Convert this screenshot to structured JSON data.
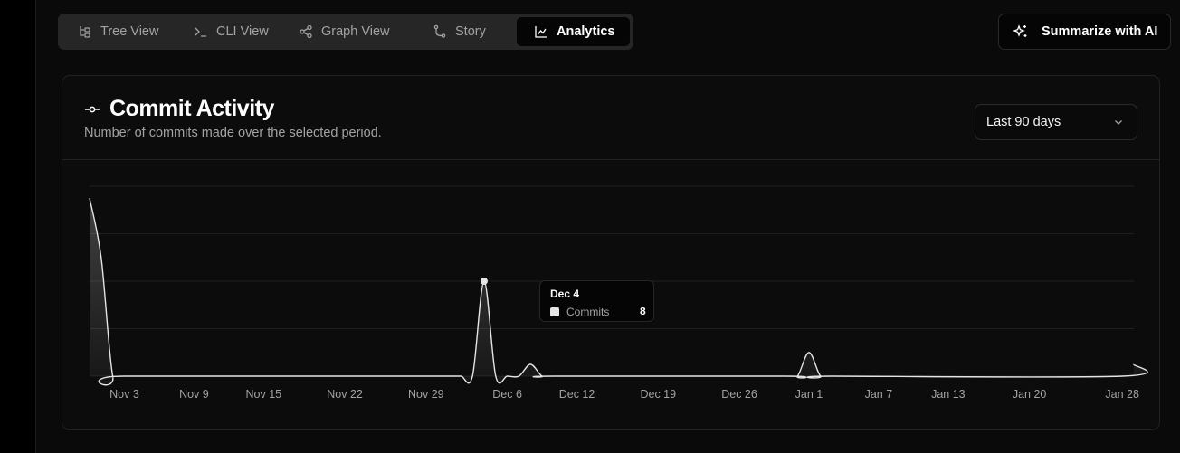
{
  "tabs": [
    {
      "label": "Tree View",
      "icon": "tree-icon",
      "active": false
    },
    {
      "label": "CLI View",
      "icon": "terminal-icon",
      "active": false
    },
    {
      "label": "Graph View",
      "icon": "share-nodes-icon",
      "active": false
    },
    {
      "label": "Story",
      "icon": "git-branch-icon",
      "active": false
    },
    {
      "label": "Analytics",
      "icon": "area-chart-icon",
      "active": true
    }
  ],
  "summarize_label": "Summarize with AI",
  "card": {
    "title": "Commit Activity",
    "subtitle": "Number of commits made over the selected period.",
    "range_selected": "Last 90 days"
  },
  "tooltip": {
    "date": "Dec 4",
    "label": "Commits",
    "value": "8"
  },
  "colors": {
    "background": "#0a0a0a",
    "card": "#0c0c0c",
    "line": "#e5e5e5",
    "muted_text": "#a3a3a3"
  },
  "chart_data": {
    "type": "area",
    "title": "Commit Activity",
    "x_tick_labels": [
      "Nov 3",
      "Nov 9",
      "Nov 15",
      "Nov 22",
      "Nov 29",
      "Dec 6",
      "Dec 12",
      "Dec 19",
      "Dec 26",
      "Jan 1",
      "Jan 7",
      "Jan 13",
      "Jan 20",
      "Jan 28"
    ],
    "grid": "horizontal",
    "ylim": [
      0,
      16
    ],
    "series": [
      {
        "name": "Commits",
        "points": [
          {
            "x": "Oct 31",
            "y": 15
          },
          {
            "x": "Nov 1",
            "y": 10
          },
          {
            "x": "Nov 2",
            "y": 0
          },
          {
            "x": "Nov 3",
            "y": 0
          },
          {
            "x": "Nov 29",
            "y": 0
          },
          {
            "x": "Nov 30",
            "y": 0
          },
          {
            "x": "Dec 1",
            "y": 0
          },
          {
            "x": "Dec 2",
            "y": 0
          },
          {
            "x": "Dec 3",
            "y": 0
          },
          {
            "x": "Dec 4",
            "y": 8
          },
          {
            "x": "Dec 5",
            "y": 0
          },
          {
            "x": "Dec 6",
            "y": 0
          },
          {
            "x": "Dec 7",
            "y": 0
          },
          {
            "x": "Dec 8",
            "y": 1
          },
          {
            "x": "Dec 9",
            "y": 0
          },
          {
            "x": "Dec 10",
            "y": 0
          },
          {
            "x": "Dec 30",
            "y": 0
          },
          {
            "x": "Dec 31",
            "y": 0
          },
          {
            "x": "Jan 1",
            "y": 2
          },
          {
            "x": "Jan 2",
            "y": 0
          },
          {
            "x": "Jan 3",
            "y": 0
          },
          {
            "x": "Jan 28",
            "y": 0
          },
          {
            "x": "Jan 29",
            "y": 1
          }
        ]
      }
    ],
    "highlight": {
      "x": "Dec 4",
      "y": 8
    }
  }
}
